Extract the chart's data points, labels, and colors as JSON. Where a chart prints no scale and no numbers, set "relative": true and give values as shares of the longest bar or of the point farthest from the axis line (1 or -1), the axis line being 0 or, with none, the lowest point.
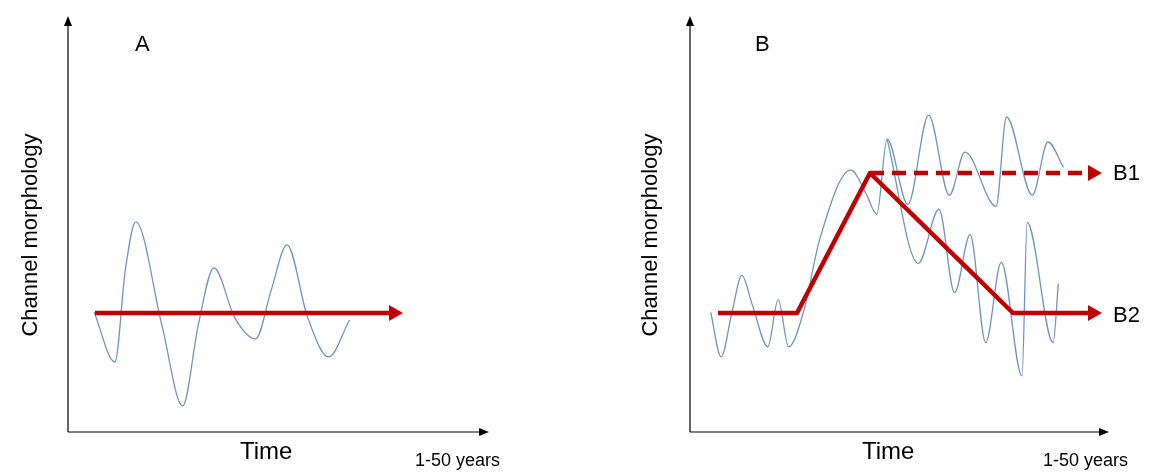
{
  "chart_data": [
    {
      "type": "line",
      "relative": true,
      "xlabel": "Time",
      "ylabel": "Channel morphology",
      "annotations": [
        "A",
        "1-50 years"
      ],
      "marker": "none",
      "categories": [
        null,
        null,
        null,
        null,
        null,
        null,
        null,
        null,
        null,
        null,
        null,
        null,
        null,
        null,
        null,
        null,
        null,
        null,
        null,
        null,
        null,
        null,
        null,
        null,
        null,
        null,
        null,
        null,
        null,
        null,
        null,
        null,
        null,
        null,
        null,
        null,
        null,
        null,
        null,
        null,
        null,
        null,
        null,
        null,
        null,
        null,
        null,
        null,
        null,
        null,
        null,
        null,
        null,
        null,
        null,
        null,
        null,
        null,
        null,
        null,
        null,
        null,
        null,
        null,
        null,
        null,
        null,
        null,
        null,
        null,
        null,
        null,
        null,
        null,
        null,
        null,
        null,
        null,
        null,
        null,
        null
      ],
      "series": [
        {
          "color": "#6e95c2",
          "values": [
            null,
            null,
            null,
            null,
            null,
            0.571,
            null,
            null,
            null,
            0.333,
            null,
            0.771,
            null,
            1,
            null,
            null,
            null,
            null,
            0.51,
            null,
            null,
            null,
            0.124,
            null,
            null,
            0.51,
            null,
            null,
            0.781,
            null,
            null,
            null,
            0.543,
            null,
            null,
            null,
            0.443,
            null,
            null,
            0.676,
            null,
            null,
            0.89,
            null,
            null,
            null,
            0.543,
            null,
            null,
            null,
            0.357,
            null,
            null,
            null,
            0.533,
            null,
            null,
            null,
            null,
            null,
            null,
            null,
            null,
            null,
            null,
            null,
            null,
            null,
            null,
            null,
            null,
            null,
            null,
            null,
            null,
            null,
            null,
            null,
            null,
            null,
            null
          ]
        }
      ]
    },
    {
      "type": "line",
      "relative": true,
      "xlabel": "Time",
      "ylabel": "Channel morphology",
      "annotations": [
        "B",
        "1-50 years",
        "B1",
        "B2"
      ],
      "marker": "none",
      "categories": [
        null,
        null,
        null,
        null,
        null,
        null,
        null,
        null,
        null,
        null,
        null,
        null,
        null,
        null,
        null,
        null,
        null,
        null,
        null,
        null,
        null,
        null,
        null,
        null,
        null,
        null,
        null,
        null,
        null,
        null,
        null,
        null,
        null,
        null,
        null,
        null,
        null,
        null,
        null,
        null,
        null,
        null,
        null,
        null,
        null,
        null,
        null,
        null,
        null,
        null,
        null,
        null,
        null,
        null,
        null,
        null,
        null,
        null,
        null,
        null,
        null,
        null,
        null,
        null,
        null,
        null,
        null,
        null,
        null,
        null,
        null,
        null,
        null,
        null,
        null,
        null,
        null,
        null,
        null,
        null,
        null
      ],
      "series": [
        {
          "color": "#6e95c2",
          "values": [
            null,
            null,
            null,
            null,
            0.377,
            null,
            0.237,
            null,
            0.37,
            null,
            0.494,
            null,
            0.402,
            null,
            null,
            0.269,
            null,
            0.418,
            null,
            0.269,
            null,
            null,
            0.386,
            null,
            null,
            0.608,
            null,
            null,
            null,
            null,
            null,
            0.826,
            null,
            null,
            0.75,
            null,
            0.687,
            null,
            0.924,
            null,
            null,
            null,
            0.718,
            null,
            null,
            null,
            1,
            null,
            null,
            null,
            0.747,
            null,
            null,
            0.883,
            null,
            null,
            null,
            null,
            null,
            0.712,
            null,
            0.994,
            null,
            null,
            null,
            null,
            0.747,
            null,
            null,
            0.915,
            null,
            null,
            0.835,
            null,
            null,
            null,
            null,
            null,
            null,
            null,
            null
          ]
        },
        {
          "color": "#6e95c2",
          "values": [
            null,
            null,
            null,
            null,
            null,
            null,
            null,
            null,
            null,
            null,
            null,
            null,
            null,
            null,
            null,
            null,
            null,
            null,
            null,
            null,
            null,
            null,
            null,
            null,
            null,
            null,
            null,
            null,
            null,
            null,
            null,
            null,
            null,
            null,
            null,
            null,
            null,
            null,
            0.924,
            null,
            null,
            null,
            null,
            null,
            0.532,
            null,
            null,
            null,
            0.703,
            null,
            null,
            0.44,
            null,
            null,
            0.623,
            null,
            null,
            0.282,
            null,
            null,
            0.535,
            null,
            null,
            null,
            0.177,
            0.661,
            null,
            null,
            null,
            null,
            0.282,
            0.468,
            null,
            null,
            null,
            null,
            null,
            null,
            null,
            null,
            null
          ]
        }
      ]
    }
  ]
}
